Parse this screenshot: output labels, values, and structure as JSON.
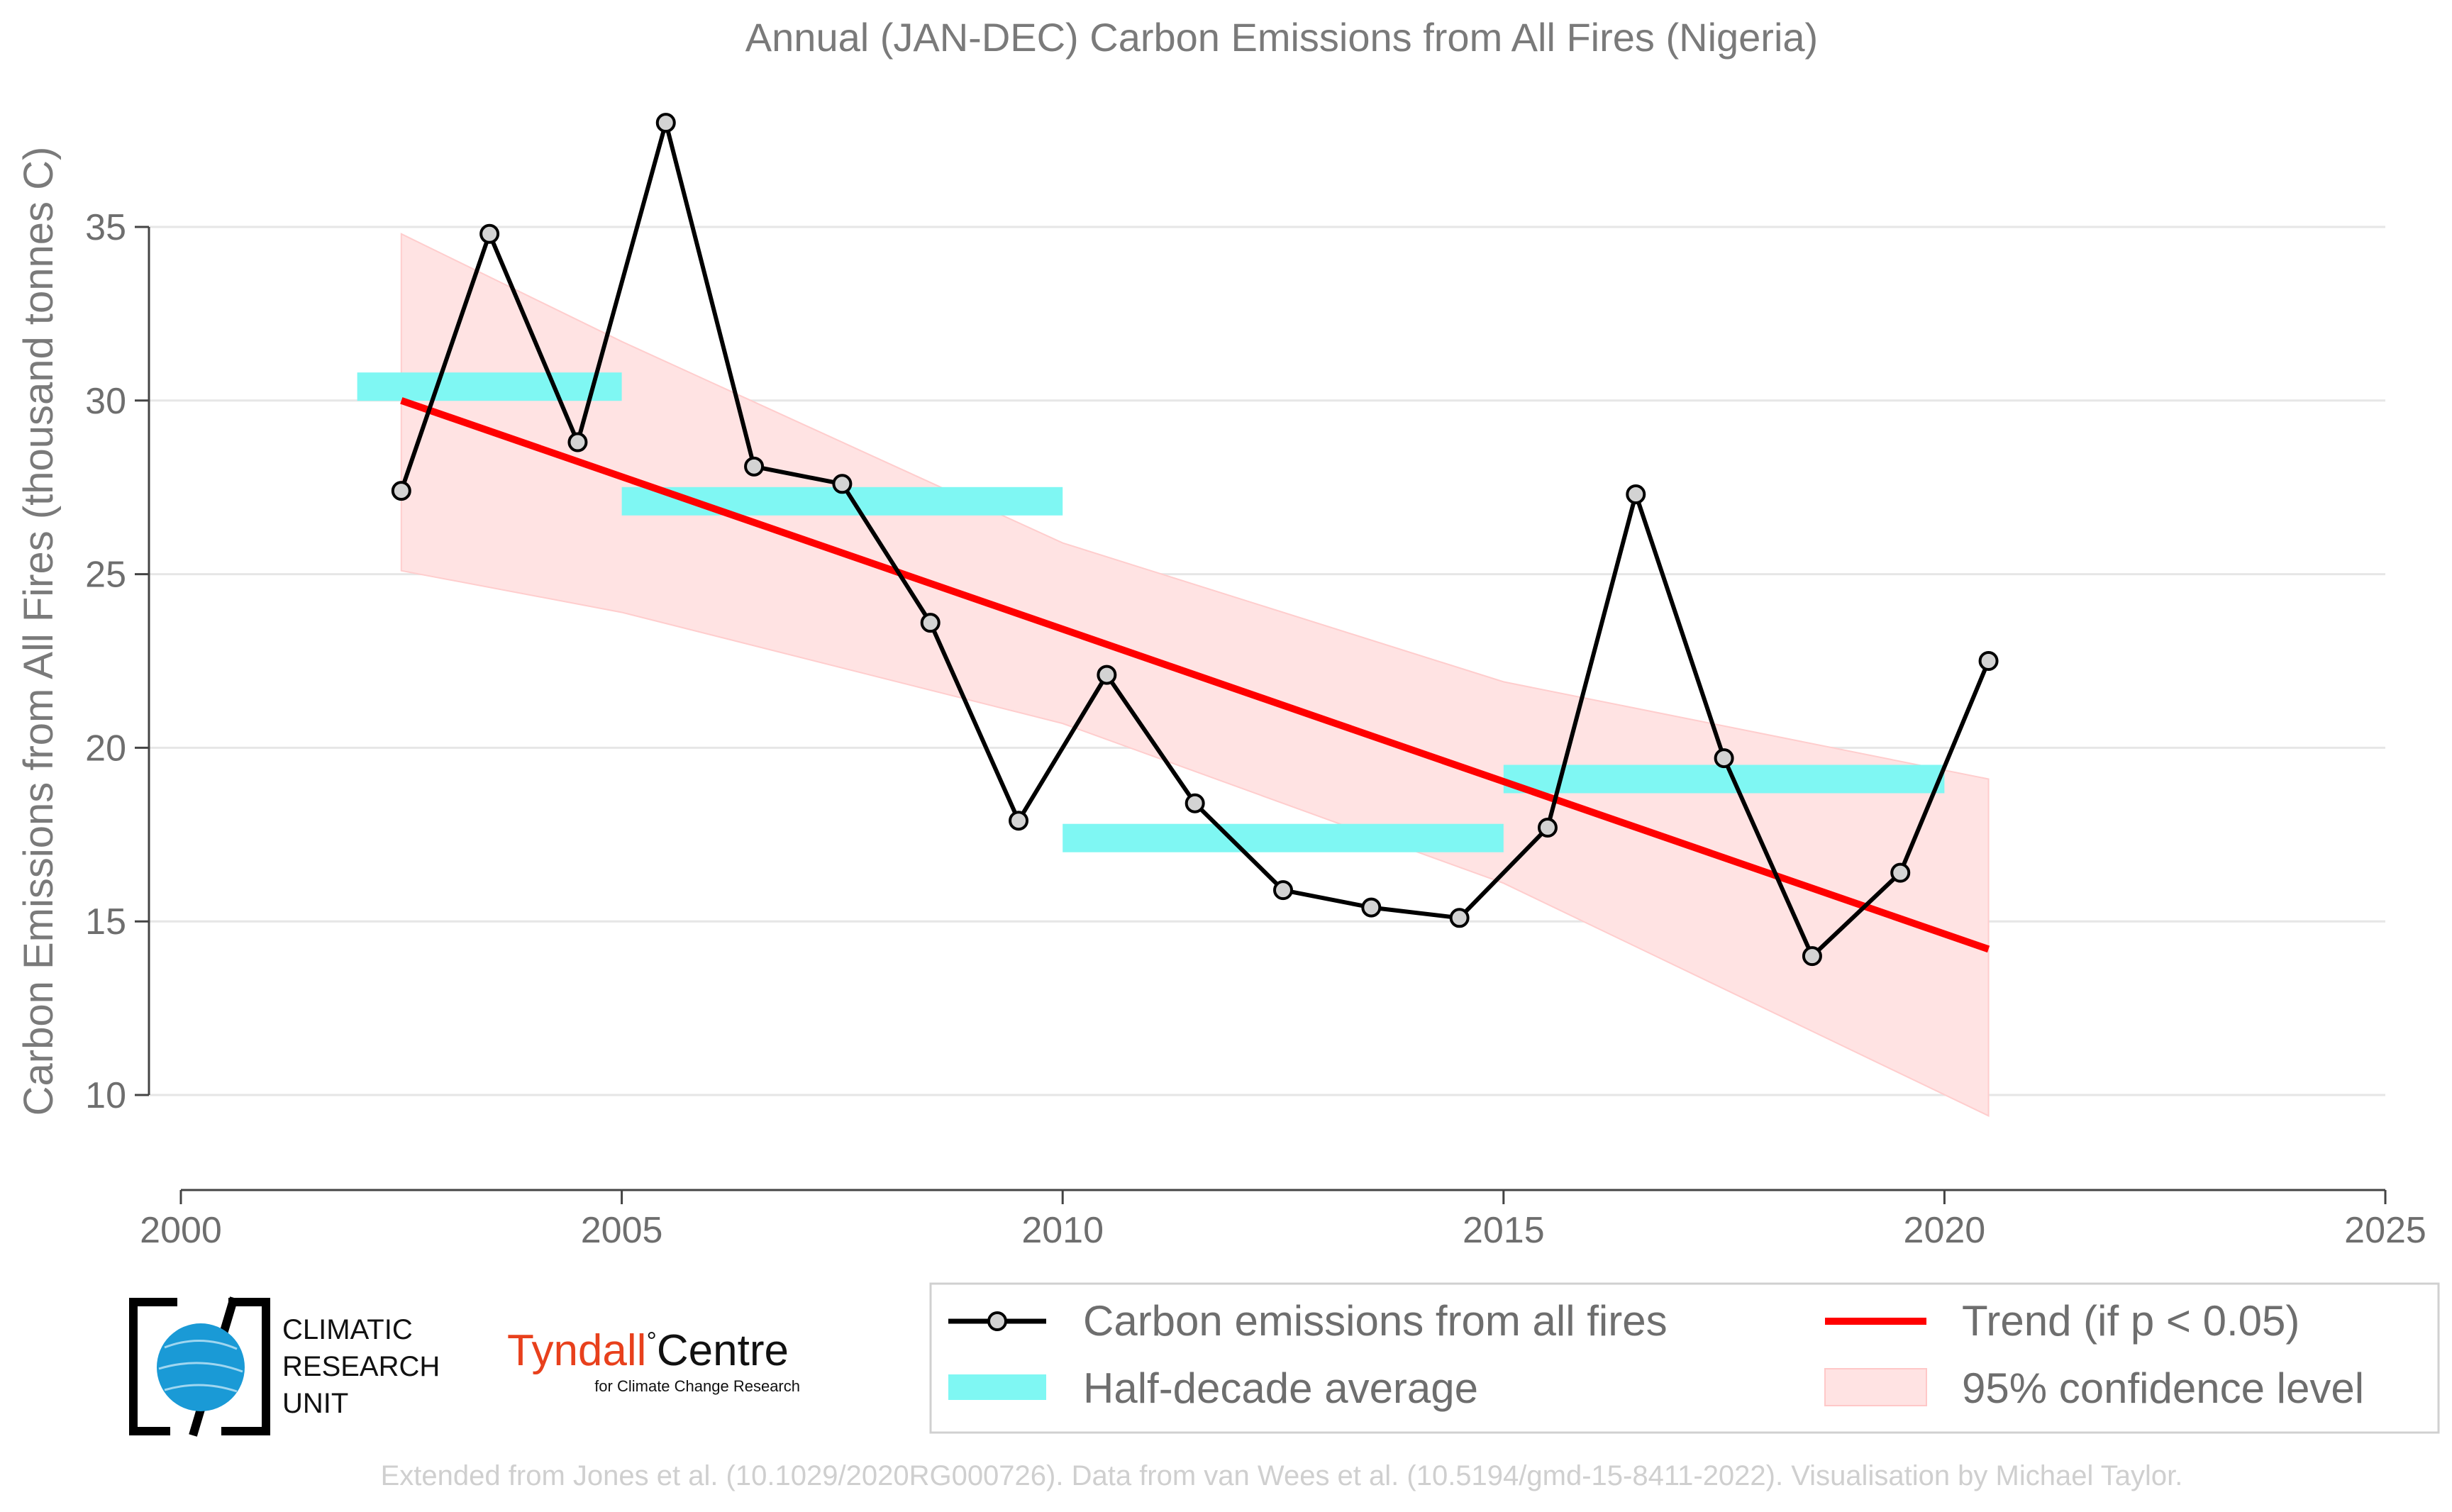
{
  "chart_data": {
    "type": "line",
    "title": "Annual (JAN-DEC) Carbon Emissions from All Fires (Nigeria)",
    "ylabel": "Carbon Emissions from All Fires (thousand tonnes C)",
    "xlim": [
      2000,
      2025
    ],
    "ylim": [
      7,
      38
    ],
    "xticks": [
      "2000",
      "2005",
      "2010",
      "2015",
      "2020",
      "2025"
    ],
    "yticks": [
      "10",
      "15",
      "20",
      "25",
      "30",
      "35"
    ],
    "grid": "horizontal",
    "series": [
      {
        "name": "Carbon emissions from all fires",
        "color": "#000000",
        "x": [
          2002.5,
          2003.5,
          2004.5,
          2005.5,
          2006.5,
          2007.5,
          2008.5,
          2009.5,
          2010.5,
          2011.5,
          2012.5,
          2013.5,
          2014.5,
          2015.5,
          2016.5,
          2017.5,
          2018.5,
          2019.5,
          2020.5
        ],
        "values": [
          27.4,
          34.8,
          28.8,
          38.0,
          28.1,
          27.6,
          23.6,
          17.9,
          22.1,
          18.4,
          15.9,
          15.4,
          15.1,
          17.7,
          27.3,
          19.7,
          14.0,
          16.4,
          22.5
        ]
      },
      {
        "name": "Half-decade average",
        "color": "#7ff7f3",
        "segments": [
          {
            "x0": 2002,
            "x1": 2005,
            "value": 30.4
          },
          {
            "x0": 2005,
            "x1": 2010,
            "value": 27.1
          },
          {
            "x0": 2010,
            "x1": 2015,
            "value": 17.4
          },
          {
            "x0": 2015,
            "x1": 2020,
            "value": 19.1
          }
        ]
      },
      {
        "name": "Trend (if p < 0.05)",
        "color": "#ff0000",
        "x": [
          2002.5,
          2020.5
        ],
        "values": [
          30.0,
          14.2
        ]
      },
      {
        "name": "95% confidence level",
        "color": "#ffdada",
        "x": [
          2002.5,
          2005.0,
          2010.0,
          2015.0,
          2020.5
        ],
        "lower": [
          25.1,
          23.9,
          20.7,
          16.1,
          9.4
        ],
        "upper": [
          34.8,
          31.7,
          25.9,
          21.9,
          19.1
        ]
      }
    ],
    "legend": {
      "placement": "bottom-right",
      "entries": [
        "Carbon emissions from all fires",
        "Trend (if p < 0.05)",
        "Half-decade average",
        "95% confidence level"
      ]
    }
  },
  "logos": {
    "cru": {
      "line1": "CLIMATIC",
      "line2": "RESEARCH",
      "line3": "UNIT"
    },
    "tyndall": {
      "name": "Tyndall",
      "degree": "°",
      "centre": "Centre",
      "subtitle": "for Climate Change Research"
    }
  },
  "credit": "Extended from Jones et al. (10.1029/2020RG000726). Data from van Wees et al. (10.5194/gmd-15-8411-2022). Visualisation by Michael Taylor."
}
